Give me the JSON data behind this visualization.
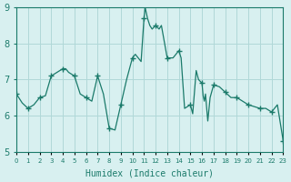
{
  "xlabel": "Humidex (Indice chaleur)",
  "ylabel": "",
  "background_color": "#d8f0f0",
  "plot_bg_color": "#d8f0f0",
  "line_color": "#1a7a6a",
  "marker_color": "#1a7a6a",
  "grid_color": "#b0d8d8",
  "xlim": [
    0,
    23
  ],
  "ylim": [
    5,
    9
  ],
  "yticks": [
    5,
    6,
    7,
    8,
    9
  ],
  "xtick_labels": [
    "0",
    "1",
    "2",
    "3",
    "4",
    "5",
    "6",
    "7",
    "8",
    "9",
    "10",
    "11",
    "12",
    "13",
    "14",
    "15",
    "16",
    "17",
    "18",
    "19",
    "20",
    "21",
    "22",
    "23"
  ],
  "x": [
    0,
    0.5,
    1,
    1.5,
    2,
    2.5,
    3,
    3.5,
    4,
    4.25,
    4.5,
    5,
    5.5,
    6,
    6.5,
    7,
    7.5,
    8,
    8.5,
    9,
    9.5,
    10,
    10.25,
    10.5,
    10.75,
    11,
    11.1,
    11.2,
    11.3,
    11.5,
    11.7,
    12,
    12.3,
    12.5,
    13,
    13.5,
    14,
    14.2,
    14.5,
    15,
    15.2,
    15.5,
    15.7,
    16,
    16.1,
    16.2,
    16.3,
    16.5,
    16.7,
    17,
    17.5,
    18,
    18.5,
    19,
    19.5,
    20,
    20.5,
    21,
    21.5,
    22,
    22.5,
    23
  ],
  "y": [
    6.6,
    6.35,
    6.2,
    6.3,
    6.5,
    6.55,
    7.1,
    7.2,
    7.3,
    7.3,
    7.2,
    7.1,
    6.6,
    6.5,
    6.4,
    7.1,
    6.6,
    5.65,
    5.6,
    6.3,
    7.0,
    7.6,
    7.7,
    7.6,
    7.5,
    8.7,
    9.0,
    8.85,
    8.7,
    8.5,
    8.4,
    8.5,
    8.4,
    8.5,
    7.6,
    7.6,
    7.8,
    7.6,
    6.2,
    6.3,
    6.05,
    7.25,
    7.0,
    6.9,
    6.55,
    6.4,
    6.6,
    5.85,
    6.5,
    6.85,
    6.8,
    6.65,
    6.5,
    6.5,
    6.4,
    6.3,
    6.25,
    6.2,
    6.2,
    6.1,
    6.3,
    5.3
  ],
  "marker_x": [
    0,
    1,
    2,
    3,
    4,
    5,
    6,
    7,
    8,
    9,
    10,
    11,
    12,
    13,
    14,
    15,
    16,
    17,
    18,
    19,
    20,
    21,
    22,
    23
  ],
  "marker_y": [
    6.6,
    6.2,
    6.5,
    7.1,
    7.3,
    7.1,
    6.5,
    7.1,
    5.65,
    6.3,
    7.6,
    8.7,
    8.5,
    7.6,
    7.8,
    6.3,
    6.9,
    6.85,
    6.65,
    6.5,
    6.3,
    6.2,
    6.1,
    5.3
  ]
}
